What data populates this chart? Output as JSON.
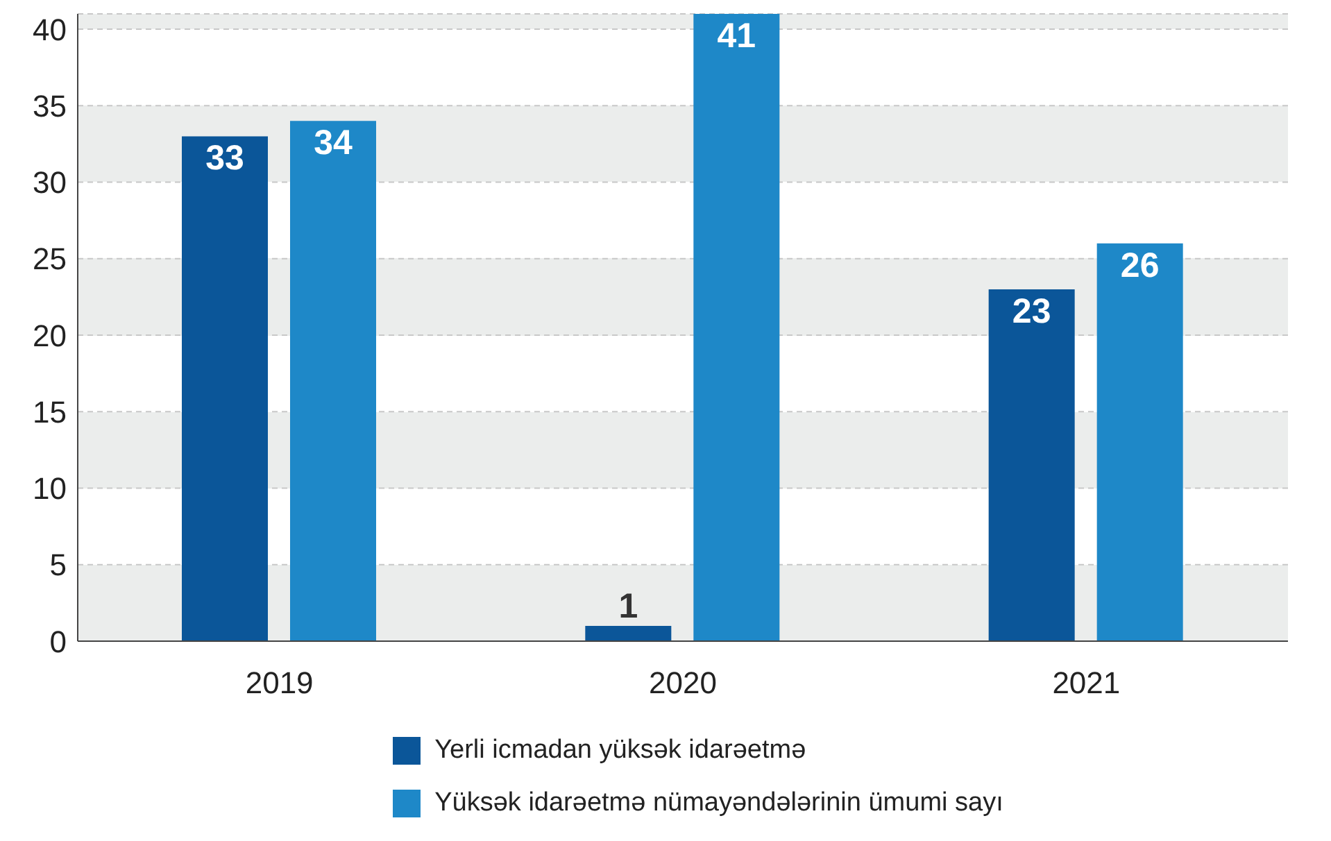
{
  "chart_data": {
    "type": "bar",
    "categories": [
      "2019",
      "2020",
      "2021"
    ],
    "series": [
      {
        "name": "Yerli icmadan yüksək idarəetmə",
        "color": "#0b5699",
        "values": [
          33,
          1,
          23
        ]
      },
      {
        "name": "Yüksək idarəetmə nümayəndələrinin ümumi sayı",
        "color": "#1e88c8",
        "values": [
          34,
          41,
          26
        ]
      }
    ],
    "ylim": [
      0,
      41
    ],
    "yticks": [
      0,
      5,
      10,
      15,
      20,
      25,
      30,
      35,
      40
    ],
    "grid": "y",
    "legend": "bottom",
    "data_labels": true
  }
}
